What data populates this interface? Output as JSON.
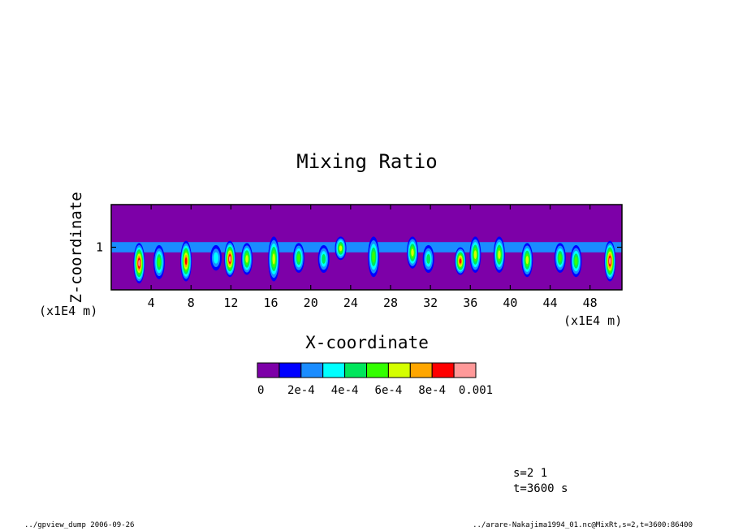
{
  "chart_data": {
    "type": "heatmap",
    "title": "Mixing Ratio",
    "xlabel": "X-coordinate",
    "ylabel": "Z-coordinate",
    "x_unit_label": "(x1E4 m)",
    "y_unit_label": "(x1E4 m)",
    "xlim": [
      0,
      51.2
    ],
    "ylim": [
      0,
      2
    ],
    "x_ticks": [
      4,
      8,
      12,
      16,
      20,
      24,
      28,
      32,
      36,
      40,
      44,
      48
    ],
    "x_tick_labels": [
      "4",
      "8",
      "12",
      "16",
      "20",
      "24",
      "28",
      "32",
      "36",
      "40",
      "44",
      "48"
    ],
    "y_ticks": [
      1
    ],
    "y_tick_labels": [
      "1"
    ],
    "background_color": "#7d00a8",
    "colorbar": {
      "levels": [
        0,
        0.0001,
        0.0002,
        0.0003,
        0.0004,
        0.0005,
        0.0006,
        0.0007,
        0.0008,
        0.0009,
        0.001
      ],
      "colors": [
        "#7d00a8",
        "#0000ff",
        "#1a8cff",
        "#00ffff",
        "#00e65c",
        "#33ff00",
        "#d4ff00",
        "#ffa600",
        "#ff0000",
        "#ff9999"
      ],
      "tick_labels": [
        "0",
        "2e-4",
        "4e-4",
        "6e-4",
        "8e-4",
        "0.001"
      ]
    },
    "cloud_layer": {
      "z_bottom": 0.88,
      "z_top": 1.12,
      "value": 0.0002
    },
    "cloud_cells": [
      {
        "x": 2.8,
        "z_top": 1.1,
        "z_bottom": 0.15,
        "peak": 0.0009
      },
      {
        "x": 4.8,
        "z_top": 1.05,
        "z_bottom": 0.25,
        "peak": 0.0005
      },
      {
        "x": 7.5,
        "z_top": 1.15,
        "z_bottom": 0.2,
        "peak": 0.0008
      },
      {
        "x": 10.5,
        "z_top": 1.05,
        "z_bottom": 0.45,
        "peak": 0.0003
      },
      {
        "x": 11.9,
        "z_top": 1.15,
        "z_bottom": 0.3,
        "peak": 0.0009
      },
      {
        "x": 13.6,
        "z_top": 1.1,
        "z_bottom": 0.35,
        "peak": 0.0006
      },
      {
        "x": 16.3,
        "z_top": 1.25,
        "z_bottom": 0.2,
        "peak": 0.0006
      },
      {
        "x": 18.8,
        "z_top": 1.1,
        "z_bottom": 0.4,
        "peak": 0.0005
      },
      {
        "x": 21.3,
        "z_top": 1.05,
        "z_bottom": 0.4,
        "peak": 0.0004
      },
      {
        "x": 23.0,
        "z_top": 1.25,
        "z_bottom": 0.7,
        "peak": 0.0006
      },
      {
        "x": 26.3,
        "z_top": 1.25,
        "z_bottom": 0.3,
        "peak": 0.0005
      },
      {
        "x": 30.2,
        "z_top": 1.25,
        "z_bottom": 0.5,
        "peak": 0.0006
      },
      {
        "x": 31.8,
        "z_top": 1.05,
        "z_bottom": 0.4,
        "peak": 0.0004
      },
      {
        "x": 35.0,
        "z_top": 1.0,
        "z_bottom": 0.35,
        "peak": 0.0008
      },
      {
        "x": 36.5,
        "z_top": 1.25,
        "z_bottom": 0.4,
        "peak": 0.0006
      },
      {
        "x": 38.9,
        "z_top": 1.25,
        "z_bottom": 0.4,
        "peak": 0.0006
      },
      {
        "x": 41.7,
        "z_top": 1.1,
        "z_bottom": 0.3,
        "peak": 0.0006
      },
      {
        "x": 45.0,
        "z_top": 1.1,
        "z_bottom": 0.4,
        "peak": 0.0005
      },
      {
        "x": 46.6,
        "z_top": 1.05,
        "z_bottom": 0.3,
        "peak": 0.0005
      },
      {
        "x": 50.0,
        "z_top": 1.15,
        "z_bottom": 0.2,
        "peak": 0.0009
      }
    ]
  },
  "annotations": {
    "slice": "s=2 1",
    "time": "t=3600 s",
    "footer_left": "../gpview_dump  2006-09-26",
    "footer_right": "../arare-Nakajima1994_01.nc@MixRt,s=2,t=3600:86400"
  }
}
